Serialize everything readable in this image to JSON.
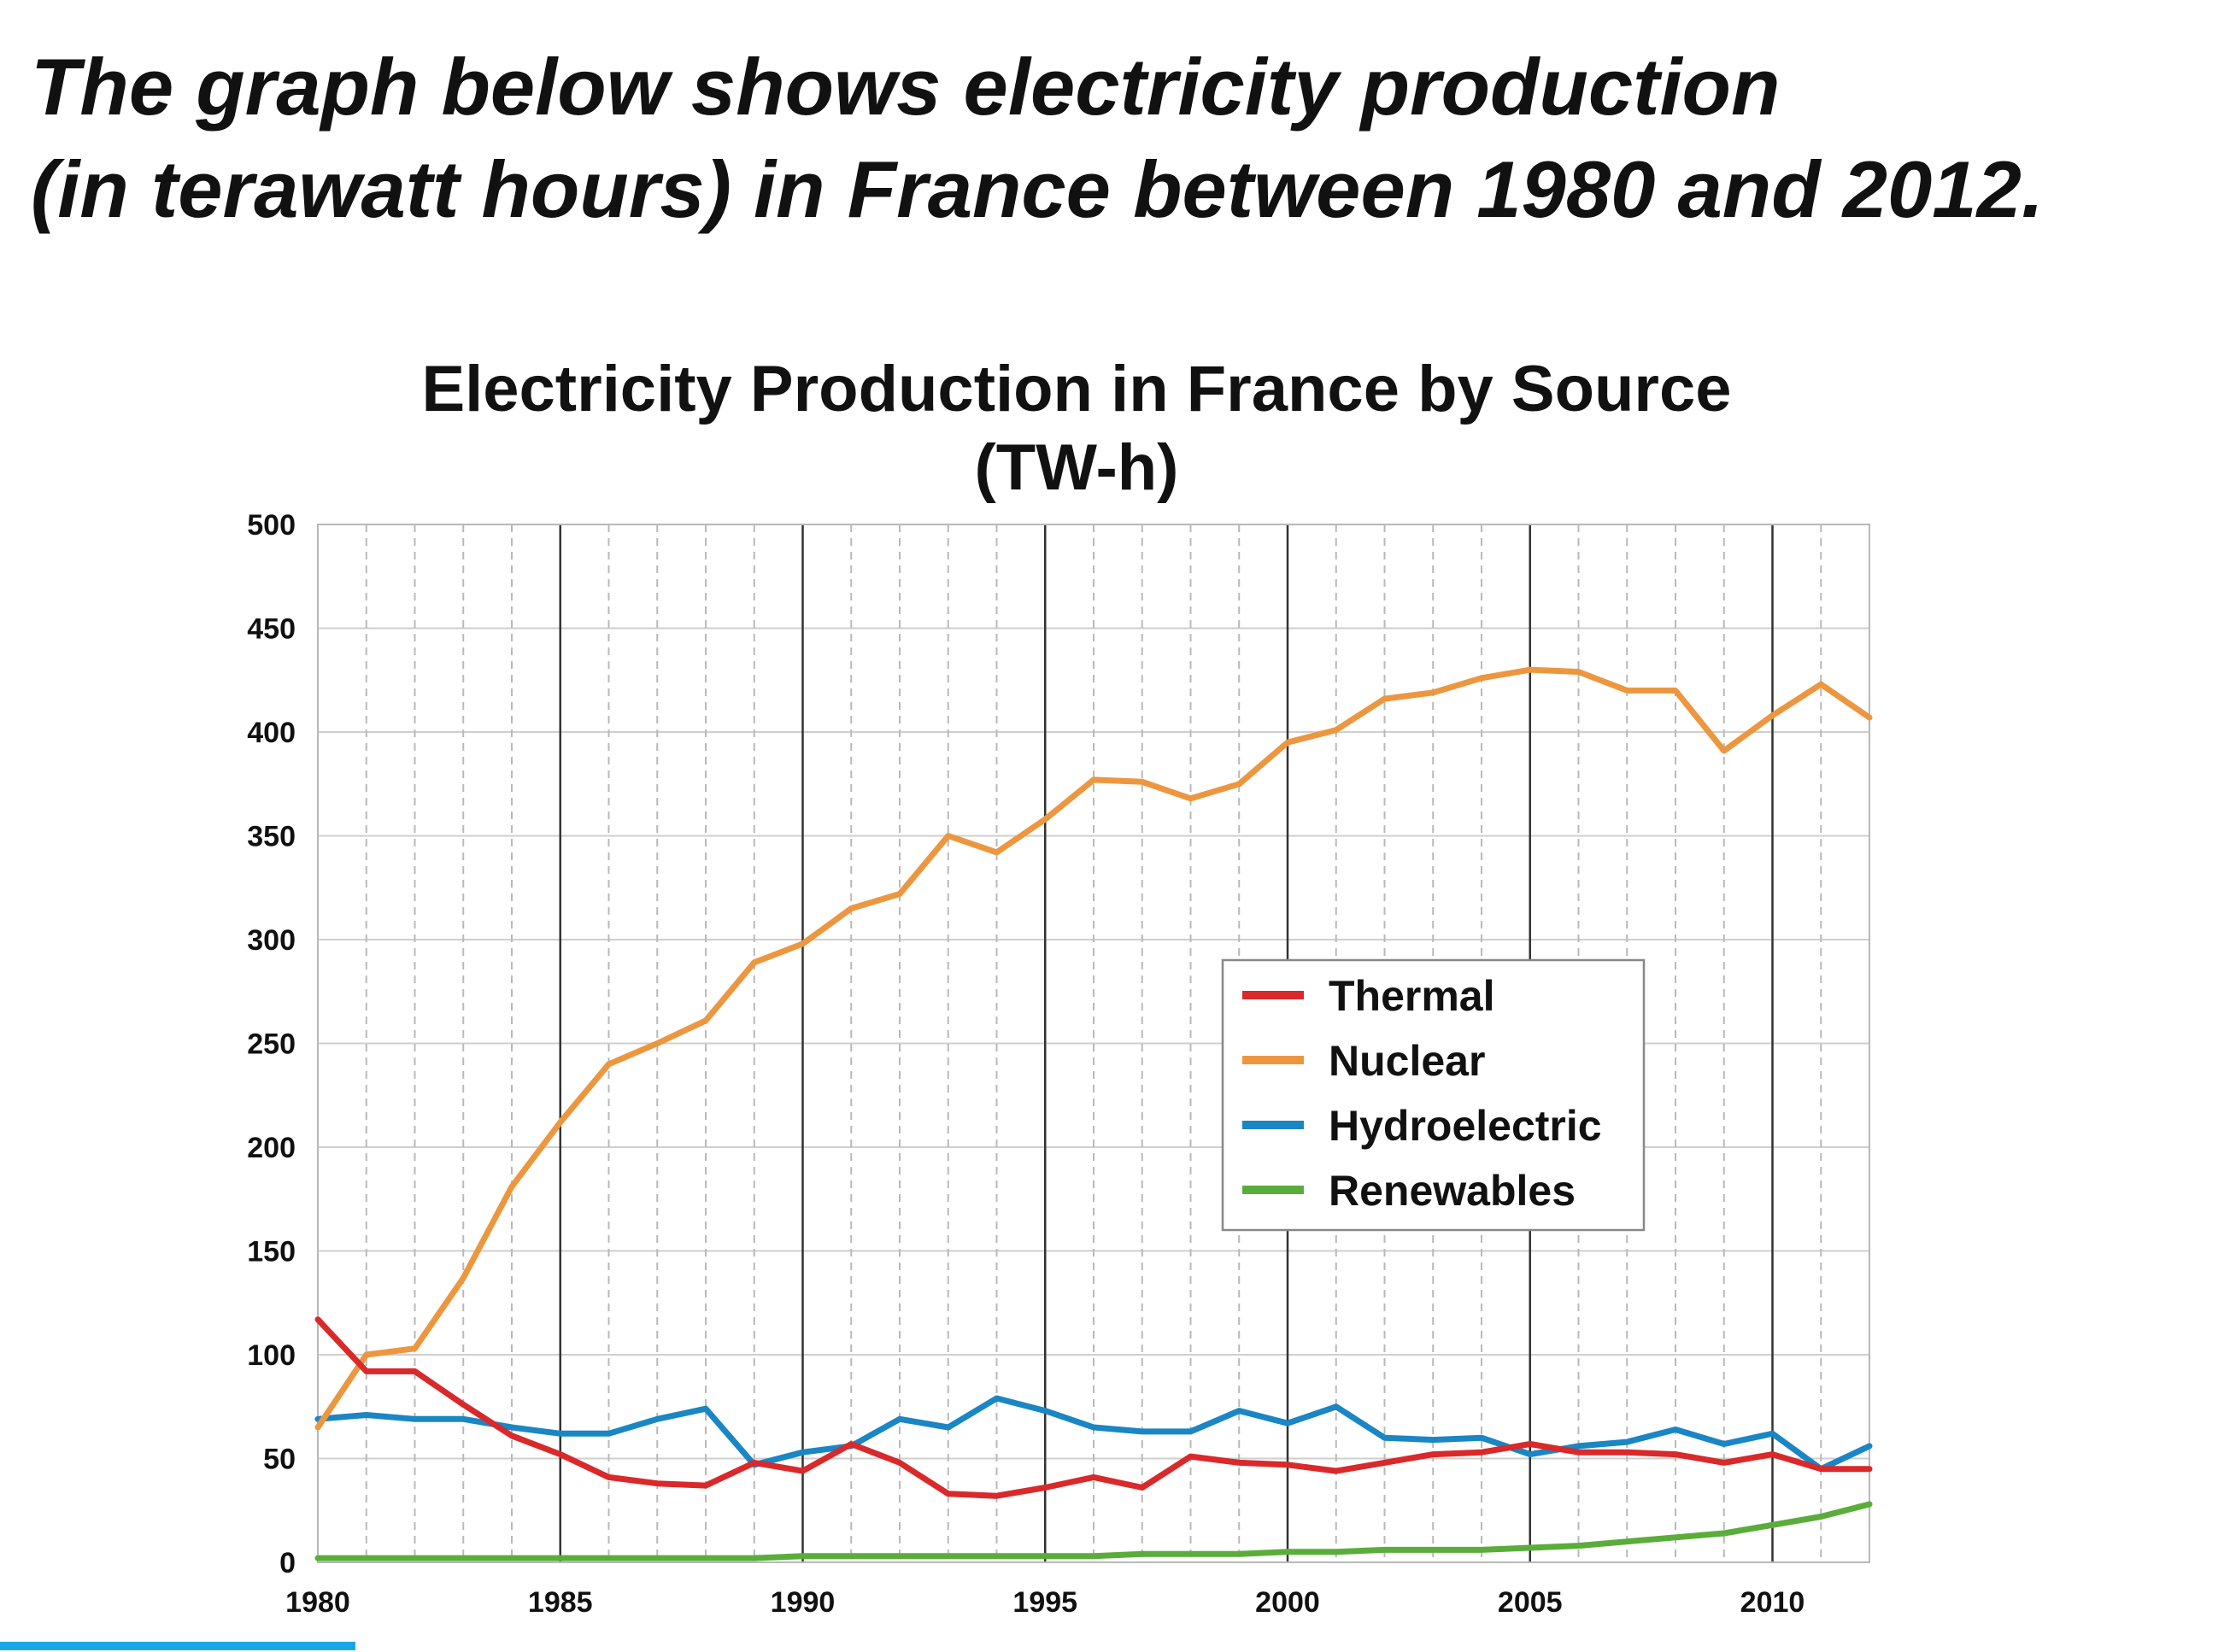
{
  "heading": {
    "line1": "The graph below shows electricity production",
    "line2": "(in terawatt hours) in France between 1980 and 2012."
  },
  "colors": {
    "thermal": "#d9292a",
    "nuclear": "#ec9740",
    "hydroelectric": "#1a86c4",
    "renewables": "#5aad3a",
    "strip": "#1aa7e8"
  },
  "chart_data": {
    "type": "line",
    "title": "Electricity Production in France by Source",
    "subtitle": "(TW-h)",
    "xlabel": "",
    "ylabel": "",
    "xlim": [
      1980,
      2012
    ],
    "ylim": [
      0,
      500
    ],
    "x_ticks": [
      1980,
      1985,
      1990,
      1995,
      2000,
      2005,
      2010
    ],
    "x_tick_labels": [
      "1980",
      "1985",
      "1990",
      "1995",
      "2000",
      "2005",
      "2010"
    ],
    "y_ticks": [
      0,
      50,
      100,
      150,
      200,
      250,
      300,
      350,
      400,
      450,
      500
    ],
    "y_tick_labels": [
      "0",
      "50",
      "100",
      "150",
      "200",
      "250",
      "300",
      "350",
      "400",
      "450",
      "500"
    ],
    "grid": true,
    "legend_position": "center-right",
    "x": [
      1980,
      1981,
      1982,
      1983,
      1984,
      1985,
      1986,
      1987,
      1988,
      1989,
      1990,
      1991,
      1992,
      1993,
      1994,
      1995,
      1996,
      1997,
      1998,
      1999,
      2000,
      2001,
      2002,
      2003,
      2004,
      2005,
      2006,
      2007,
      2008,
      2009,
      2010,
      2011,
      2012
    ],
    "series": [
      {
        "name": "Thermal",
        "color_key": "thermal",
        "values": [
          117,
          92,
          92,
          76,
          61,
          52,
          41,
          38,
          37,
          48,
          44,
          57,
          48,
          33,
          32,
          36,
          41,
          36,
          51,
          48,
          47,
          44,
          48,
          52,
          53,
          57,
          53,
          53,
          52,
          48,
          52,
          45,
          45
        ]
      },
      {
        "name": "Nuclear",
        "color_key": "nuclear",
        "values": [
          65,
          100,
          103,
          137,
          181,
          212,
          240,
          250,
          261,
          289,
          298,
          315,
          322,
          350,
          342,
          358,
          377,
          376,
          368,
          375,
          395,
          401,
          416,
          419,
          426,
          430,
          429,
          420,
          420,
          391,
          408,
          423,
          407
        ]
      },
      {
        "name": "Hydroelectric",
        "color_key": "hydroelectric",
        "values": [
          69,
          71,
          69,
          69,
          65,
          62,
          62,
          69,
          74,
          47,
          53,
          56,
          69,
          65,
          79,
          73,
          65,
          63,
          63,
          73,
          67,
          75,
          60,
          59,
          60,
          52,
          56,
          58,
          64,
          57,
          62,
          45,
          56
        ]
      },
      {
        "name": "Renewables",
        "color_key": "renewables",
        "values": [
          2,
          2,
          2,
          2,
          2,
          2,
          2,
          2,
          2,
          2,
          3,
          3,
          3,
          3,
          3,
          3,
          3,
          4,
          4,
          4,
          5,
          5,
          6,
          6,
          6,
          7,
          8,
          10,
          12,
          14,
          18,
          22,
          28
        ]
      }
    ]
  }
}
